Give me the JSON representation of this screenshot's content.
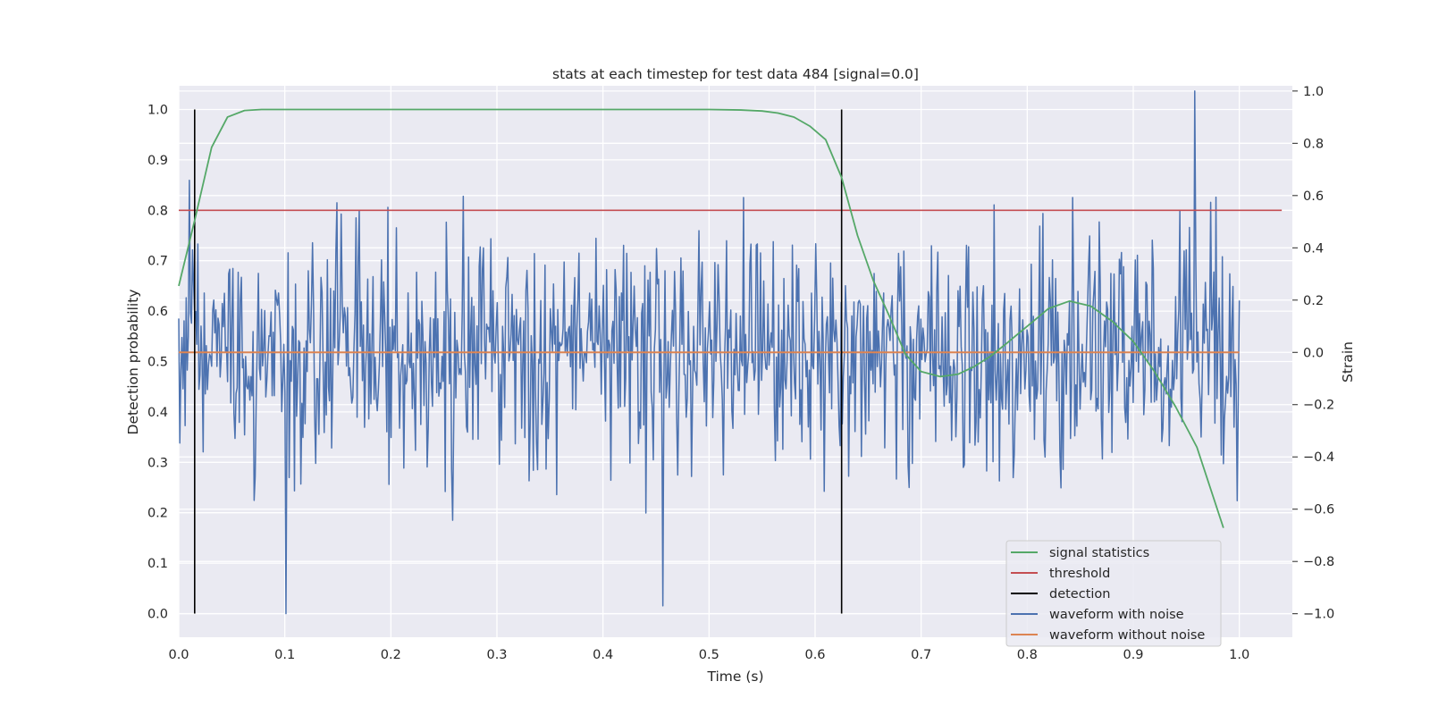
{
  "chart_data": {
    "type": "line",
    "title": "stats at each timestep for test data 484 [signal=0.0]",
    "xlabel": "Time (s)",
    "ylabel": "Detection probability",
    "y2label": "Strain",
    "xlim": [
      0.0,
      1.05
    ],
    "ylim": [
      -0.047,
      1.047
    ],
    "y2lim": [
      -1.09,
      1.02
    ],
    "xticks": [
      "0.0",
      "0.1",
      "0.2",
      "0.3",
      "0.4",
      "0.5",
      "0.6",
      "0.7",
      "0.8",
      "0.9",
      "1.0"
    ],
    "yticks": [
      "0.0",
      "0.1",
      "0.2",
      "0.3",
      "0.4",
      "0.5",
      "0.6",
      "0.7",
      "0.8",
      "0.9",
      "1.0"
    ],
    "y2ticks": [
      "−1.0",
      "−0.8",
      "−0.6",
      "−0.4",
      "−0.2",
      "0.0",
      "0.2",
      "0.4",
      "0.6",
      "0.8",
      "1.0"
    ],
    "grid": true,
    "legend_position": "lower-right",
    "colors": {
      "signal_statistics": "#55a868",
      "threshold": "#c44e52",
      "detection": "#000000",
      "waveform_with_noise": "#4c72b0",
      "waveform_without_noise": "#dd8452",
      "plot_background": "#eaeaf2",
      "grid": "#ffffff"
    },
    "series": [
      {
        "name": "signal statistics",
        "axis": "left",
        "x": [
          0.0,
          0.015,
          0.031,
          0.046,
          0.062,
          0.078,
          0.093,
          0.2,
          0.3,
          0.4,
          0.5,
          0.53,
          0.55,
          0.565,
          0.58,
          0.595,
          0.61,
          0.625,
          0.64,
          0.655,
          0.67,
          0.685,
          0.7,
          0.718,
          0.735,
          0.75,
          0.765,
          0.78,
          0.8,
          0.82,
          0.84,
          0.86,
          0.88,
          0.9,
          0.92,
          0.94,
          0.96,
          0.985
        ],
        "y": [
          0.65,
          0.78,
          0.925,
          0.985,
          0.998,
          1.0,
          1.0,
          1.0,
          1.0,
          1.0,
          1.0,
          0.999,
          0.997,
          0.993,
          0.985,
          0.967,
          0.94,
          0.865,
          0.75,
          0.66,
          0.59,
          0.515,
          0.48,
          0.47,
          0.475,
          0.49,
          0.51,
          0.535,
          0.57,
          0.605,
          0.62,
          0.61,
          0.58,
          0.54,
          0.48,
          0.41,
          0.33,
          0.17
        ]
      },
      {
        "name": "threshold",
        "axis": "left",
        "x": [
          0.0,
          1.04
        ],
        "y": [
          0.8,
          0.8
        ]
      },
      {
        "name": "detection",
        "axis": "left",
        "segments": [
          {
            "x": 0.015,
            "y": [
              0.0,
              1.0
            ]
          },
          {
            "x": 0.625,
            "y": [
              0.0,
              1.0
            ]
          }
        ]
      },
      {
        "name": "waveform with noise",
        "axis": "right",
        "x_range": [
          0.0,
          1.0
        ],
        "n_points": 1000,
        "noise_sigma": 0.23,
        "min": -1.0,
        "max": 1.0
      },
      {
        "name": "waveform without noise",
        "axis": "right",
        "x": [
          0.0,
          1.0
        ],
        "y": [
          0.0,
          0.0
        ]
      }
    ]
  },
  "legend": [
    {
      "label": "signal statistics",
      "color": "#55a868"
    },
    {
      "label": "threshold",
      "color": "#c44e52"
    },
    {
      "label": "detection",
      "color": "#000000"
    },
    {
      "label": "waveform with noise",
      "color": "#4c72b0"
    },
    {
      "label": "waveform without noise",
      "color": "#dd8452"
    }
  ]
}
